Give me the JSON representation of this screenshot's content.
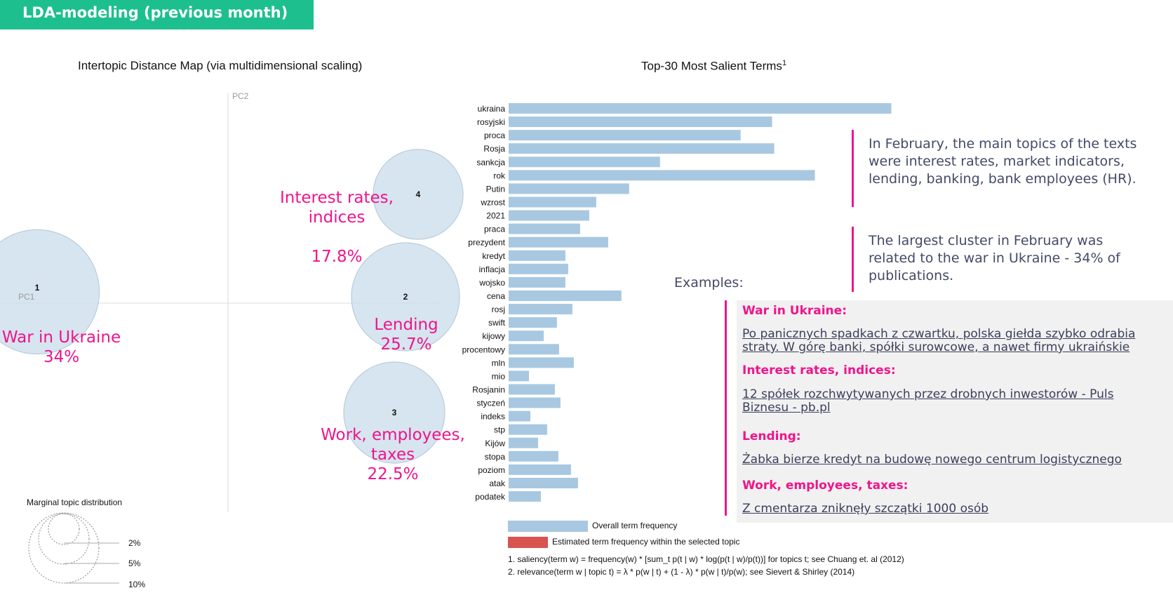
{
  "header": {
    "title": "LDA-modeling (previous month)"
  },
  "chart_data": [
    {
      "type": "scatter",
      "title": "Intertopic Distance Map (via multidimensional scaling)",
      "xlabel": "PC1",
      "ylabel": "PC2",
      "topics": [
        {
          "id": "1",
          "name": "War in Ukraine",
          "share": "34%",
          "value": 34
        },
        {
          "id": "4",
          "name": "Interest rates,\nindices",
          "share": "17.8%",
          "value": 17.8
        },
        {
          "id": "2",
          "name": "Lending",
          "share": "25.7%",
          "value": 25.7
        },
        {
          "id": "3",
          "name": "Work, employees,\ntaxes",
          "share": "22.5%",
          "value": 22.5
        }
      ],
      "marginal": {
        "title": "Marginal topic distribution",
        "levels": [
          "2%",
          "5%",
          "10%"
        ]
      }
    },
    {
      "type": "bar",
      "title": "Top-30 Most Salient Terms",
      "title_sup": "1",
      "categories": [
        "ukraina",
        "rosyjski",
        "proca",
        "Rosja",
        "sankcja",
        "rok",
        "Putin",
        "wzrost",
        "2021",
        "praca",
        "prezydent",
        "kredyt",
        "inflacja",
        "wojsko",
        "cena",
        "rosj",
        "swift",
        "kijowy",
        "procentowy",
        "mln",
        "mio",
        "Rosjanin",
        "styczeń",
        "indeks",
        "stp",
        "Kijów",
        "stopa",
        "poziom",
        "atak",
        "podatek"
      ],
      "values": [
        546,
        376,
        331,
        379,
        216,
        437,
        172,
        125,
        115,
        102,
        142,
        81,
        85,
        81,
        161,
        91,
        69,
        50,
        72,
        93,
        29,
        66,
        74,
        31,
        55,
        42,
        71,
        89,
        99,
        46
      ],
      "legend": [
        "Overall term frequency",
        "Estimated term frequency within the selected topic"
      ],
      "colors": {
        "overall": "#a8c8e1",
        "selected": "#d9534f"
      },
      "footnotes": [
        "1. saliency(term w) = frequency(w) * [sum_t p(t | w) * log(p(t | w)/p(t))] for topics t; see Chuang et. al (2012)",
        "2. relevance(term w | topic t) = λ * p(w | t) + (1 - λ) * p(w | t)/p(w); see Sievert & Shirley (2014)"
      ]
    }
  ],
  "summary": {
    "p1": "In February, the main topics of the texts were interest rates, market indicators, lending, banking, bank employees (HR).",
    "p2": "The largest cluster in February was related to the war in Ukraine - 34% of publications."
  },
  "examples": {
    "label": "Examples:",
    "items": [
      {
        "heading": "War in Ukraine:",
        "link": "Po panicznych spadkach z czwartku, polska giełda szybko odrabia straty. W górę banki, spółki surowcowe, a nawet firmy ukraińskie"
      },
      {
        "heading": "Interest rates, indices:",
        "link": "12 spółek rozchwytywanych przez drobnych inwestorów - Puls Biznesu - pb.pl"
      },
      {
        "heading": "Lending:",
        "link": "Żabka bierze kredyt na budowę nowego centrum logistycznego"
      },
      {
        "heading": "Work, employees, taxes:",
        "link": "Z cmentarza zniknęły szczątki 1000 osób"
      }
    ]
  },
  "colors": {
    "accent": "#1dbf8e",
    "highlight": "#f0148c",
    "bubble": "#cfe0ec"
  }
}
